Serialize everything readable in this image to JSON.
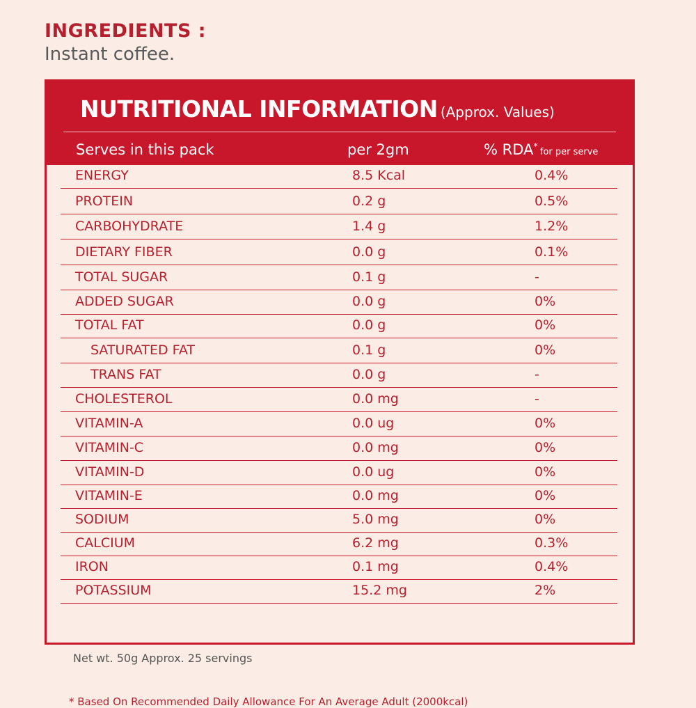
{
  "ingredients": {
    "title": "INGREDIENTS :",
    "text": "Instant coffee."
  },
  "panel": {
    "title": "NUTRITIONAL INFORMATION",
    "subtitle": "(Approx. Values)",
    "headers": {
      "serves": "Serves in this pack",
      "per": "per 2gm",
      "rda": "% RDA",
      "rda_mark": "*",
      "rda_note": "for per serve"
    },
    "rows": [
      {
        "name": "ENERGY",
        "value": "8.5 Kcal",
        "rda": "0.4%",
        "indent": false
      },
      {
        "name": "PROTEIN",
        "value": "0.2 g",
        "rda": "0.5%",
        "indent": false
      },
      {
        "name": "CARBOHYDRATE",
        "value": "1.4 g",
        "rda": "1.2%",
        "indent": false
      },
      {
        "name": "DIETARY FIBER",
        "value": "0.0 g",
        "rda": "0.1%",
        "indent": false
      },
      {
        "name": "TOTAL SUGAR",
        "value": "0.1 g",
        "rda": "-",
        "indent": false
      },
      {
        "name": "ADDED SUGAR",
        "value": "0.0 g",
        "rda": "0%",
        "indent": false
      },
      {
        "name": "TOTAL FAT",
        "value": "0.0 g",
        "rda": "0%",
        "indent": false
      },
      {
        "name": "SATURATED FAT",
        "value": "0.1 g",
        "rda": "0%",
        "indent": true
      },
      {
        "name": "TRANS FAT",
        "value": "0.0 g",
        "rda": "-",
        "indent": true
      },
      {
        "name": "CHOLESTEROL",
        "value": "0.0 mg",
        "rda": "-",
        "indent": false
      },
      {
        "name": "VITAMIN-A",
        "value": "0.0 ug",
        "rda": "0%",
        "indent": false
      },
      {
        "name": "VITAMIN-C",
        "value": "0.0 mg",
        "rda": "0%",
        "indent": false
      },
      {
        "name": "VITAMIN-D",
        "value": "0.0 ug",
        "rda": "0%",
        "indent": false
      },
      {
        "name": "VITAMIN-E",
        "value": "0.0 mg",
        "rda": "0%",
        "indent": false
      },
      {
        "name": "SODIUM",
        "value": "5.0 mg",
        "rda": "0%",
        "indent": false
      },
      {
        "name": "CALCIUM",
        "value": "6.2 mg",
        "rda": "0.3%",
        "indent": false
      },
      {
        "name": "IRON",
        "value": "0.1 mg",
        "rda": "0.4%",
        "indent": false
      },
      {
        "name": "POTASSIUM",
        "value": "15.2 mg",
        "rda": "2%",
        "indent": false
      }
    ],
    "footnote": "* Based On Recommended Daily Allowance For An Average Adult (2000kcal)"
  },
  "net_weight": "Net wt. 50g Approx. 25 servings",
  "colors": {
    "accent": "#c8162a",
    "text_red": "#b5202e",
    "background": "#fbede6"
  }
}
